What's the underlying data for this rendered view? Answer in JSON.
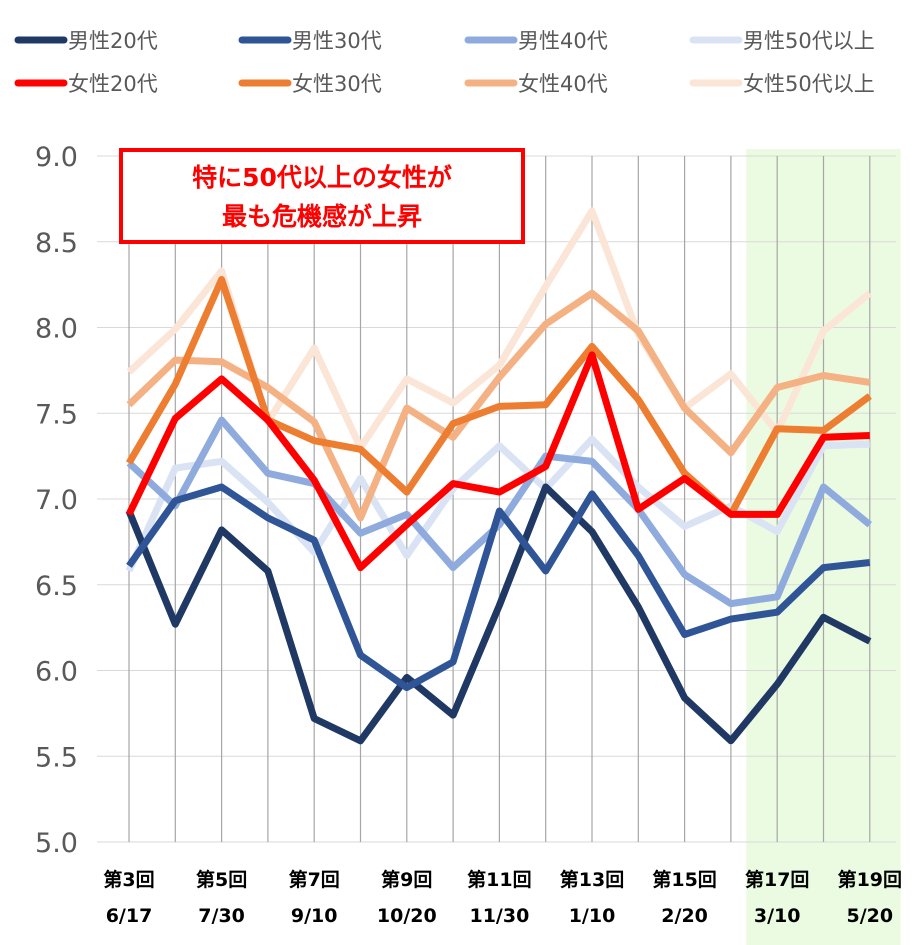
{
  "chart_data": {
    "type": "line",
    "title": "",
    "xlabel": "",
    "ylabel": "",
    "ylim": [
      5.0,
      9.0
    ],
    "yticks": [
      "5.0",
      "5.5",
      "6.0",
      "6.5",
      "7.0",
      "7.5",
      "8.0",
      "8.5",
      "9.0"
    ],
    "grid": "vertical",
    "legend_position": "top",
    "x_labels": [
      {
        "round": "第3回",
        "date": "6/17"
      },
      {
        "round": "第5回",
        "date": "7/30"
      },
      {
        "round": "第7回",
        "date": "9/10"
      },
      {
        "round": "第9回",
        "date": "10/20"
      },
      {
        "round": "第11回",
        "date": "11/30"
      },
      {
        "round": "第13回",
        "date": "1/10"
      },
      {
        "round": "第15回",
        "date": "2/20"
      },
      {
        "round": "第17回",
        "date": "3/10"
      },
      {
        "round": "第19回",
        "date": "5/20"
      }
    ],
    "x": [
      "第3回",
      "第4回",
      "第5回",
      "第6回",
      "第7回",
      "第8回",
      "第9回",
      "第10回",
      "第11回",
      "第12回",
      "第13回",
      "第14回",
      "第15回",
      "第16回",
      "第17回",
      "第18回",
      "第19回"
    ],
    "highlight_range": [
      "第17回",
      "第19回"
    ],
    "annotation": {
      "line1": "特に50代以上の女性が",
      "line2": "最も危機感が上昇"
    },
    "series": [
      {
        "name": "女性50代以上",
        "color": "#fbe5d6",
        "values": [
          7.74,
          7.99,
          8.33,
          7.45,
          7.88,
          7.3,
          7.7,
          7.56,
          7.78,
          8.24,
          8.68,
          7.96,
          7.53,
          7.73,
          7.39,
          7.98,
          8.2
        ]
      },
      {
        "name": "男性50代以上",
        "color": "#dae3f3",
        "values": [
          6.58,
          7.18,
          7.22,
          6.98,
          6.69,
          7.12,
          6.67,
          7.06,
          7.31,
          7.06,
          7.35,
          7.07,
          6.84,
          6.96,
          6.81,
          7.31,
          7.32
        ]
      },
      {
        "name": "男性40代",
        "color": "#8faadc",
        "values": [
          7.21,
          6.96,
          7.46,
          7.15,
          7.09,
          6.8,
          6.91,
          6.6,
          6.85,
          7.25,
          7.22,
          6.94,
          6.56,
          6.39,
          6.43,
          7.07,
          6.85
        ]
      },
      {
        "name": "女性40代",
        "color": "#f4b183",
        "values": [
          7.55,
          7.81,
          7.8,
          7.65,
          7.45,
          6.89,
          7.53,
          7.36,
          7.71,
          8.02,
          8.2,
          7.98,
          7.53,
          7.27,
          7.65,
          7.72,
          7.68
        ]
      },
      {
        "name": "男性20代",
        "color": "#203864",
        "values": [
          6.93,
          6.27,
          6.82,
          6.58,
          5.72,
          5.59,
          5.96,
          5.74,
          6.38,
          7.07,
          6.81,
          6.37,
          5.84,
          5.59,
          5.92,
          6.31,
          6.17
        ]
      },
      {
        "name": "男性30代",
        "color": "#2f5597",
        "values": [
          6.61,
          6.99,
          7.07,
          6.89,
          6.76,
          6.09,
          5.9,
          6.05,
          6.93,
          6.58,
          7.03,
          6.67,
          6.21,
          6.3,
          6.34,
          6.6,
          6.63
        ]
      },
      {
        "name": "女性30代",
        "color": "#ed7d31",
        "values": [
          7.21,
          7.67,
          8.28,
          7.46,
          7.34,
          7.29,
          7.04,
          7.44,
          7.54,
          7.55,
          7.89,
          7.58,
          7.15,
          6.91,
          7.41,
          7.4,
          7.6
        ]
      },
      {
        "name": "女性20代",
        "color": "#ff0000",
        "values": [
          6.91,
          7.47,
          7.7,
          7.46,
          7.11,
          6.6,
          6.85,
          7.09,
          7.04,
          7.19,
          7.84,
          6.94,
          7.12,
          6.91,
          6.91,
          7.36,
          7.37
        ]
      }
    ],
    "legend_order": [
      "男性20代",
      "男性30代",
      "男性40代",
      "男性50代以上",
      "女性20代",
      "女性30代",
      "女性40代",
      "女性50代以上"
    ]
  }
}
